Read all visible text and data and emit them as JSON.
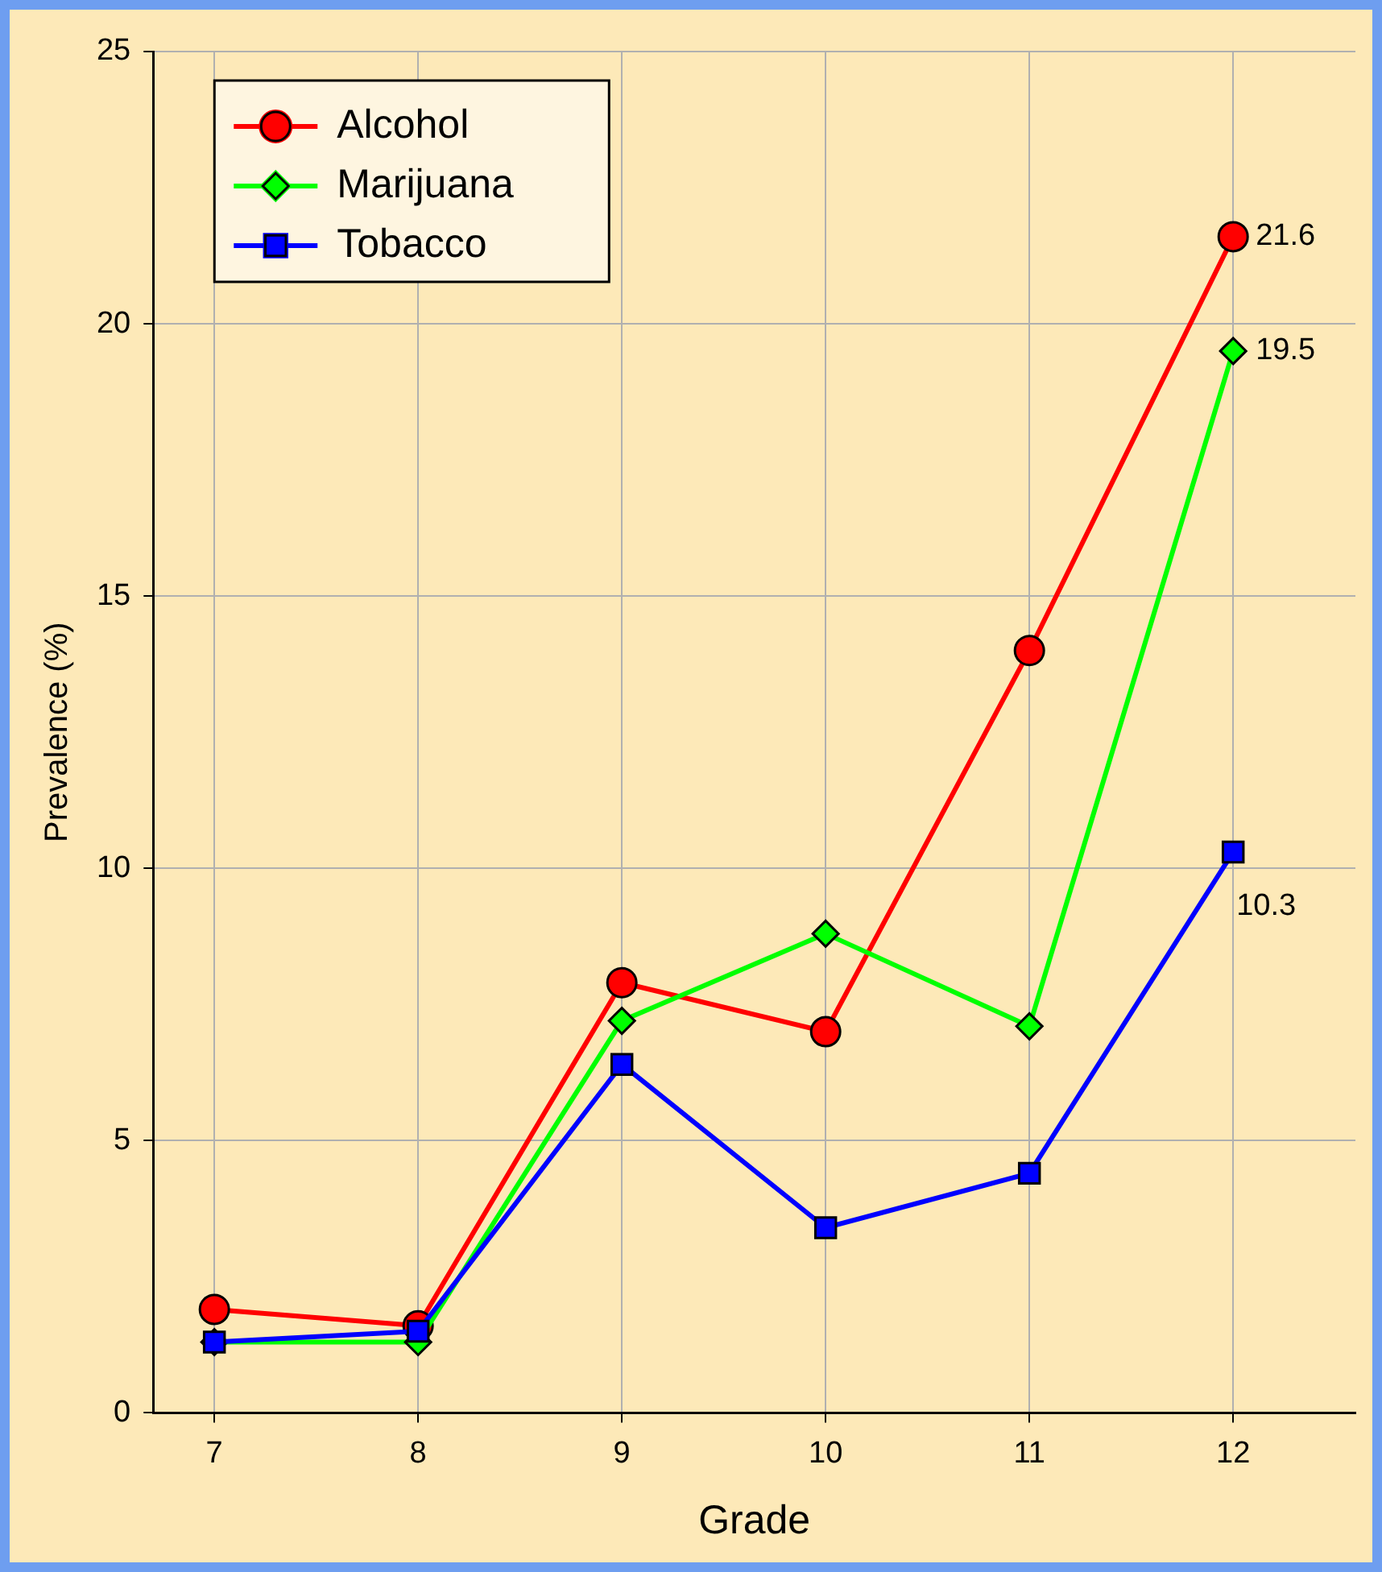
{
  "chart_data": {
    "type": "line",
    "xlabel": "Grade",
    "ylabel": "Prevalence (%)",
    "x": [
      7,
      8,
      9,
      10,
      11,
      12
    ],
    "xlim": [
      6.7,
      12.6
    ],
    "xticks": [
      7,
      8,
      9,
      10,
      11,
      12
    ],
    "ylim": [
      0,
      25
    ],
    "yticks": [
      0,
      5,
      10,
      15,
      20,
      25
    ],
    "grid": true,
    "legend": "top left",
    "line_style": "solid",
    "series": [
      {
        "name": "Alcohol",
        "color": "#ff0000",
        "marker": "circle",
        "values": [
          1.9,
          1.6,
          7.9,
          7.0,
          14.0,
          21.6
        ],
        "value_labels": [
          null,
          null,
          null,
          null,
          null,
          "21.6"
        ]
      },
      {
        "name": "Marijuana",
        "color": "#00ff00",
        "marker": "diamond",
        "values": [
          1.3,
          1.3,
          7.2,
          8.8,
          7.1,
          19.5
        ],
        "value_labels": [
          null,
          null,
          null,
          null,
          null,
          "19.5"
        ]
      },
      {
        "name": "Tobacco",
        "color": "#0000ff",
        "marker": "square",
        "values": [
          1.3,
          1.5,
          6.4,
          3.4,
          4.4,
          10.3
        ],
        "value_labels": [
          null,
          null,
          null,
          null,
          null,
          "10.3"
        ]
      }
    ]
  }
}
